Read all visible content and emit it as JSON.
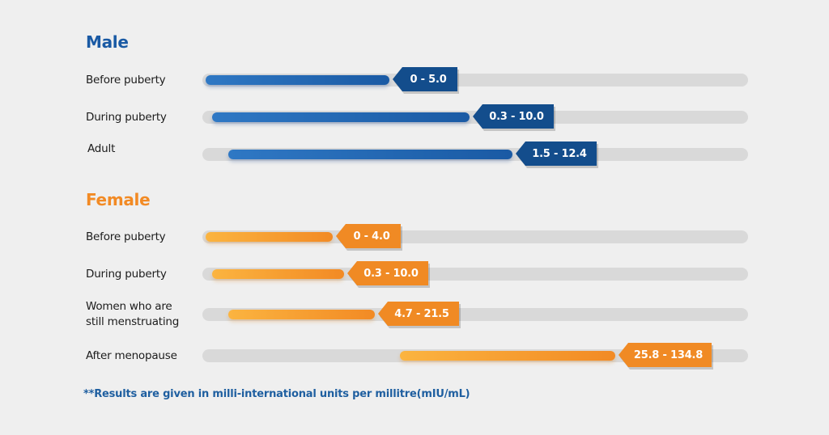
{
  "chart_data": {
    "type": "bar",
    "subtype": "horizontal range bars",
    "groups": [
      {
        "name": "Male",
        "color": "#1a5aa4",
        "rows": [
          {
            "label": "Before puberty",
            "low": 0,
            "high": 5.0,
            "range_text": "0 - 5.0"
          },
          {
            "label": "During puberty",
            "low": 0.3,
            "high": 10.0,
            "range_text": "0.3 - 10.0"
          },
          {
            "label": "Adult",
            "low": 1.5,
            "high": 12.4,
            "range_text": "1.5 - 12.4"
          }
        ]
      },
      {
        "name": "Female",
        "color": "#f28a24",
        "rows": [
          {
            "label": "Before puberty",
            "low": 0,
            "high": 4.0,
            "range_text": "0 - 4.0"
          },
          {
            "label": "During puberty",
            "low": 0.3,
            "high": 10.0,
            "range_text": "0.3 - 10.0"
          },
          {
            "label": "Women who are still menstruating",
            "low": 4.7,
            "high": 21.5,
            "range_text": "4.7 - 21.5"
          },
          {
            "label": "After menopause",
            "low": 25.8,
            "high": 134.8,
            "range_text": "25.8 - 134.8"
          }
        ]
      }
    ],
    "axis_scale": "not to scale (no axis printed)",
    "grid": false,
    "legend": "none"
  },
  "colors": {
    "male_title": "#1a5aa4",
    "female_title": "#f28a24",
    "track": "#d9d9d9",
    "background": "#efefef"
  },
  "footnote": "**Results are given in milli-international units per millitre(mIU/mL)"
}
